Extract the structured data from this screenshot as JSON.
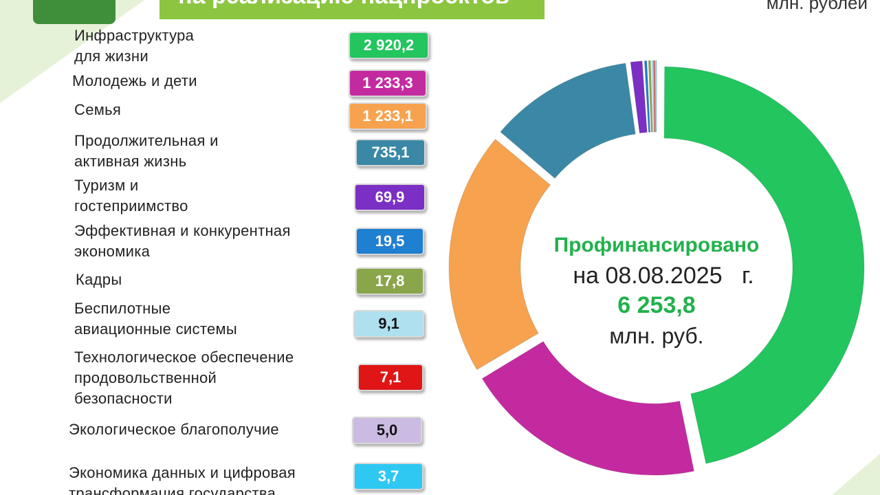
{
  "chart_data": {
    "type": "pie",
    "title": "на реализацию нацпроектов",
    "unit_note": "млн. рублей",
    "categories": [
      "Инфраструктура\nдля жизни",
      "Молодежь и дети",
      "Семья",
      "Продолжительная и\nактивная жизнь",
      "Туризм и\nгостеприимство",
      "Эффективная и конкурентная\nэкономика",
      "Кадры",
      "Беспилотные\nавиационные системы",
      "Технологическое обеспечение\nпродовольственной\nбезопасности",
      "Экологическое благополучие",
      "Экономика данных и цифровая\nтрансформация государства"
    ],
    "values": [
      2920.2,
      1233.3,
      1233.1,
      735.1,
      69.9,
      19.5,
      17.8,
      9.1,
      7.1,
      5.0,
      3.7
    ],
    "value_labels": [
      "2 920,2",
      "1 233,3",
      "1 233,1",
      "735,1",
      "69,9",
      "19,5",
      "17,8",
      "9,1",
      "7,1",
      "5,0",
      "3,7"
    ],
    "colors": [
      "#22c55e",
      "#c42aa0",
      "#f7a24e",
      "#3a88a6",
      "#7b2fc4",
      "#1f7fd1",
      "#8aa64a",
      "#aee0f0",
      "#e01515",
      "#cbbbe2",
      "#2ec8f2"
    ],
    "annotations": [
      "Профинансировано",
      "на 08.08.2025   г.",
      "6 253,8",
      "млн. руб."
    ]
  }
}
